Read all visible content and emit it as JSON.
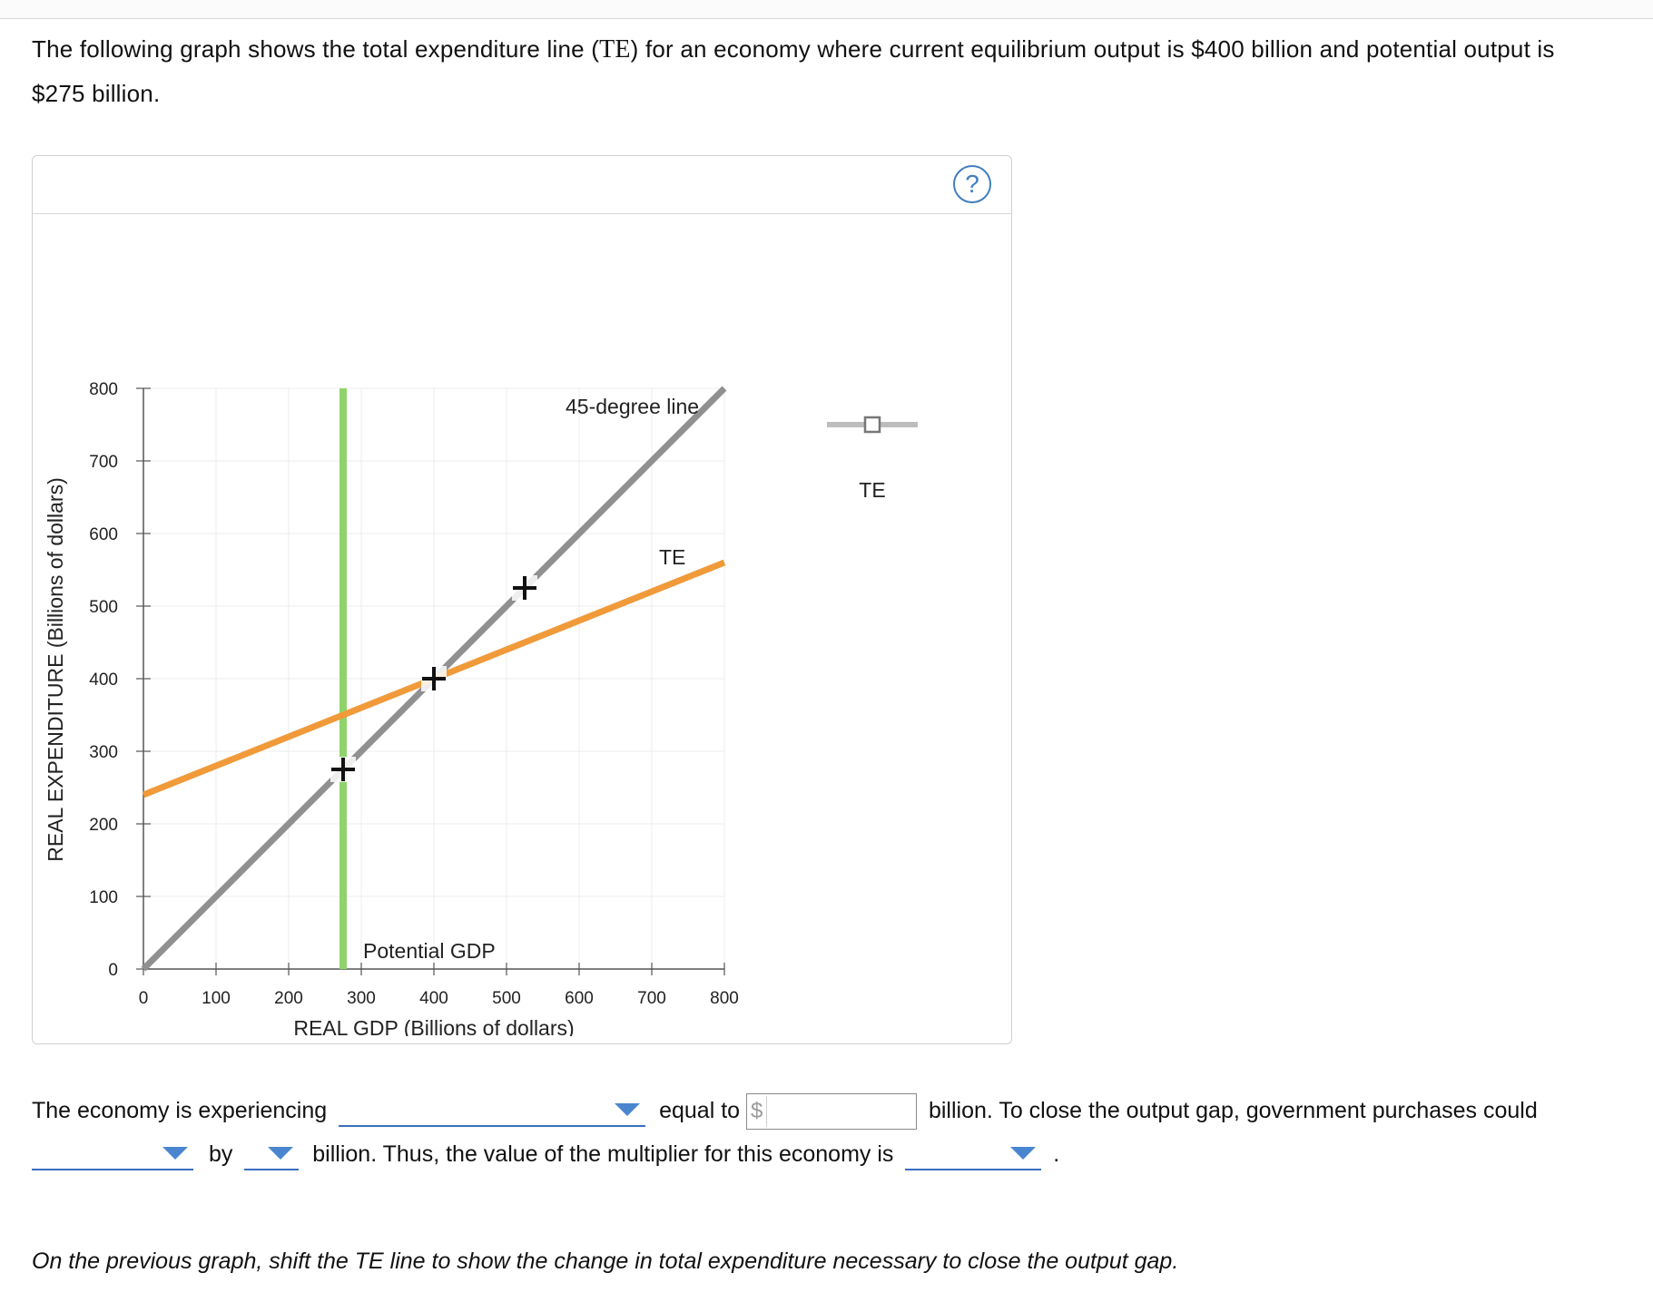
{
  "intro": {
    "part1": "The following graph shows the total expenditure line (",
    "te_symbol": "TE",
    "part2": ") for an economy where current equilibrium output is $400 billion and potential output is",
    "line2": "$275 billion."
  },
  "panel": {
    "help_label": "?"
  },
  "chart_data": {
    "type": "line",
    "xlabel": "REAL GDP (Billions of dollars)",
    "ylabel": "REAL EXPENDITURE (Billions of dollars)",
    "xlim": [
      0,
      800
    ],
    "ylim": [
      0,
      800
    ],
    "x_ticks": [
      "0",
      "100",
      "200",
      "300",
      "400",
      "500",
      "600",
      "700",
      "800"
    ],
    "y_ticks": [
      "0",
      "100",
      "200",
      "300",
      "400",
      "500",
      "600",
      "700",
      "800"
    ],
    "grid": true,
    "series": [
      {
        "name": "45-degree line",
        "color": "#909090",
        "points": [
          [
            0,
            0
          ],
          [
            800,
            800
          ]
        ]
      },
      {
        "name": "TE",
        "color": "#f09a3a",
        "points": [
          [
            0,
            240
          ],
          [
            800,
            560
          ]
        ]
      }
    ],
    "vertical_lines": [
      {
        "name": "Potential GDP",
        "x": 275,
        "color": "#8ed46b"
      }
    ],
    "markers": [
      {
        "x": 275,
        "y": 275
      },
      {
        "x": 400,
        "y": 400
      },
      {
        "x": 525,
        "y": 525
      }
    ],
    "legend": {
      "label": "TE",
      "placement": "right"
    }
  },
  "question": {
    "s1": "The economy is experiencing",
    "s2": "equal to",
    "currency": "$",
    "s3": "billion. To close the output gap, government purchases could",
    "s4": "by",
    "s5": "billion. Thus, the value of the multiplier for this economy is",
    "s6": "."
  },
  "instruction": "On the previous graph, shift the TE line to show the change in total expenditure necessary to close the output gap."
}
